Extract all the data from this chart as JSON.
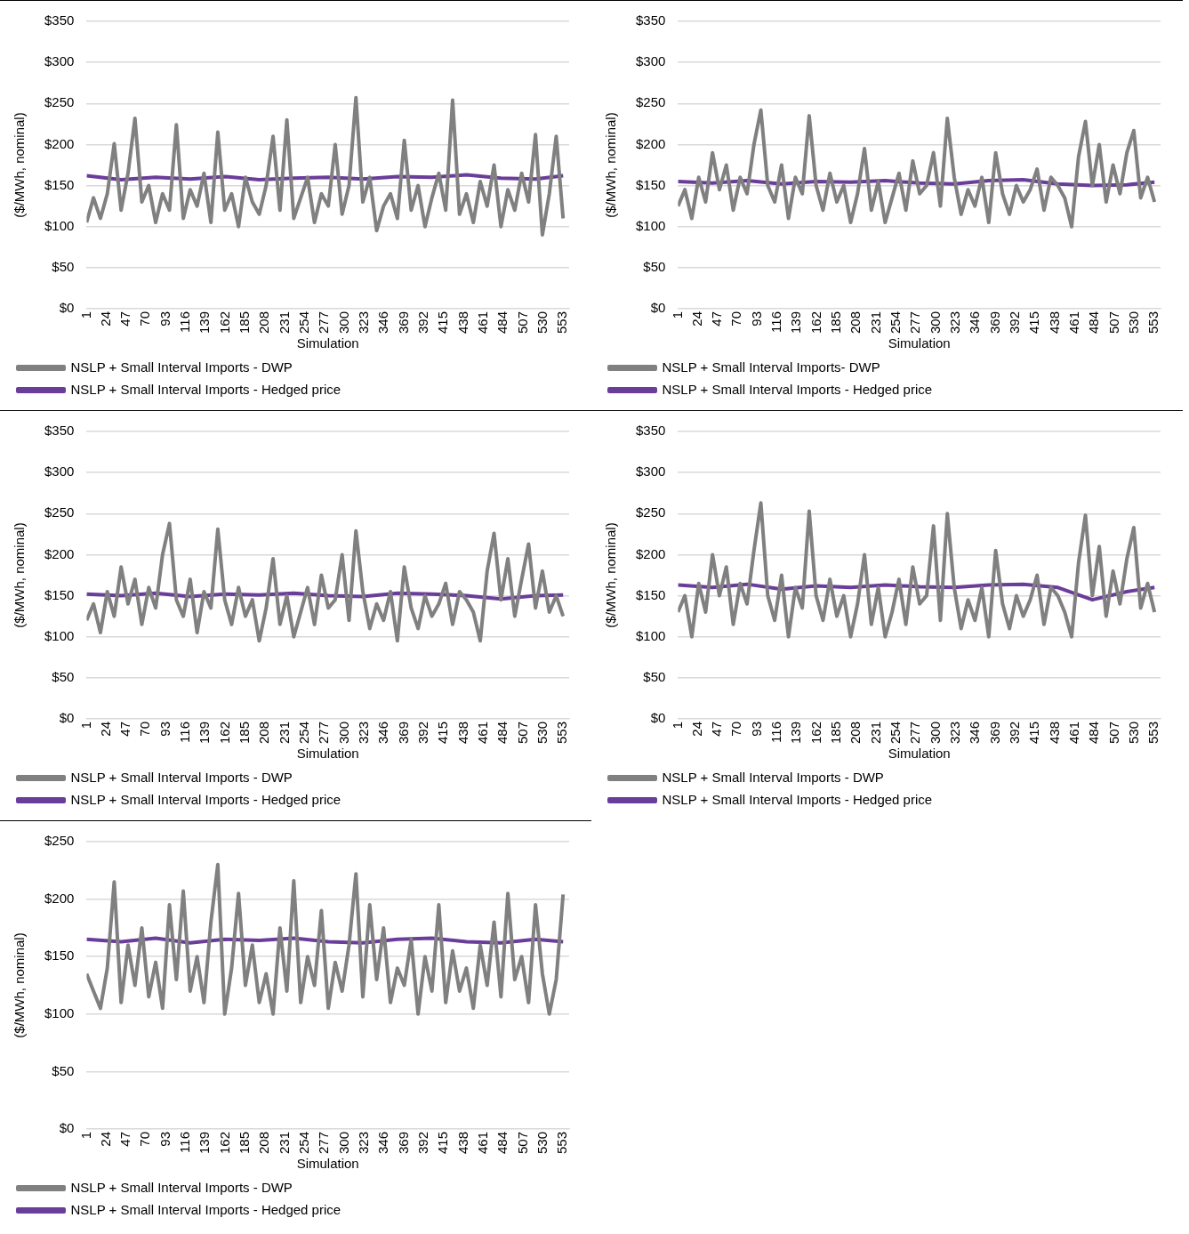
{
  "chart_data": [
    {
      "type": "line",
      "xlabel": "Simulation",
      "ylabel": "($/MWh, nominal)",
      "xlim": [
        1,
        560
      ],
      "xticks": [
        1,
        24,
        47,
        70,
        93,
        116,
        139,
        162,
        185,
        208,
        231,
        254,
        277,
        300,
        323,
        346,
        369,
        392,
        415,
        438,
        461,
        484,
        507,
        530,
        553
      ],
      "ylim": [
        0,
        350
      ],
      "yticks": [
        {
          "value": 0,
          "label": "$0"
        },
        {
          "value": 50,
          "label": "$50"
        },
        {
          "value": 100,
          "label": "$100"
        },
        {
          "value": 150,
          "label": "$150"
        },
        {
          "value": 200,
          "label": "$200"
        },
        {
          "value": 250,
          "label": "$250"
        },
        {
          "value": 300,
          "label": "$300"
        },
        {
          "value": 350,
          "label": "$350"
        }
      ],
      "grid": "y",
      "legend": "bottom",
      "marker": "none",
      "x": [
        1,
        9,
        17,
        25,
        33,
        41,
        49,
        57,
        65,
        73,
        81,
        89,
        97,
        105,
        113,
        121,
        129,
        137,
        145,
        153,
        161,
        169,
        177,
        185,
        193,
        201,
        209,
        217,
        225,
        233,
        241,
        249,
        257,
        265,
        273,
        281,
        289,
        297,
        305,
        313,
        321,
        329,
        337,
        345,
        353,
        361,
        369,
        377,
        385,
        393,
        401,
        409,
        417,
        425,
        433,
        441,
        449,
        457,
        465,
        473,
        481,
        489,
        497,
        505,
        513,
        521,
        529,
        537,
        545,
        553
      ],
      "series": [
        {
          "name": "NSLP + Small Interval Imports - Hedged price",
          "color": "#6a3d9a",
          "x": [
            1,
            41,
            81,
            121,
            161,
            201,
            241,
            281,
            321,
            361,
            401,
            441,
            481,
            521,
            553
          ],
          "values": [
            162,
            157,
            160,
            158,
            161,
            157,
            159,
            160,
            158,
            161,
            160,
            163,
            159,
            158,
            162
          ]
        },
        {
          "name": "NSLP + Small Interval Imports - DWP",
          "color": "#808080",
          "values": [
            105,
            135,
            110,
            140,
            201,
            120,
            165,
            232,
            130,
            150,
            105,
            140,
            120,
            224,
            110,
            145,
            125,
            165,
            105,
            215,
            120,
            140,
            100,
            160,
            130,
            115,
            150,
            210,
            120,
            230,
            110,
            135,
            160,
            105,
            140,
            125,
            200,
            115,
            150,
            257,
            130,
            160,
            95,
            125,
            140,
            110,
            205,
            120,
            150,
            100,
            135,
            165,
            120,
            254,
            115,
            140,
            105,
            155,
            125,
            175,
            100,
            145,
            120,
            165,
            130,
            212,
            90,
            140,
            210,
            110
          ]
        }
      ]
    },
    {
      "type": "line",
      "xlabel": "Simulation",
      "ylabel": "($/MWh, nominal)",
      "xlim": [
        1,
        560
      ],
      "xticks": [
        1,
        24,
        47,
        70,
        93,
        116,
        139,
        162,
        185,
        208,
        231,
        254,
        277,
        300,
        323,
        346,
        369,
        392,
        415,
        438,
        461,
        484,
        507,
        530,
        553
      ],
      "ylim": [
        0,
        350
      ],
      "yticks": [
        {
          "value": 0,
          "label": "$0"
        },
        {
          "value": 50,
          "label": "$50"
        },
        {
          "value": 100,
          "label": "$100"
        },
        {
          "value": 150,
          "label": "$150"
        },
        {
          "value": 200,
          "label": "$200"
        },
        {
          "value": 250,
          "label": "$250"
        },
        {
          "value": 300,
          "label": "$300"
        },
        {
          "value": 350,
          "label": "$350"
        }
      ],
      "grid": "y",
      "legend": "bottom",
      "marker": "none",
      "x": [
        1,
        9,
        17,
        25,
        33,
        41,
        49,
        57,
        65,
        73,
        81,
        89,
        97,
        105,
        113,
        121,
        129,
        137,
        145,
        153,
        161,
        169,
        177,
        185,
        193,
        201,
        209,
        217,
        225,
        233,
        241,
        249,
        257,
        265,
        273,
        281,
        289,
        297,
        305,
        313,
        321,
        329,
        337,
        345,
        353,
        361,
        369,
        377,
        385,
        393,
        401,
        409,
        417,
        425,
        433,
        441,
        449,
        457,
        465,
        473,
        481,
        489,
        497,
        505,
        513,
        521,
        529,
        537,
        545,
        553
      ],
      "series": [
        {
          "name": "NSLP + Small Interval Imports - Hedged price",
          "color": "#6a3d9a",
          "x": [
            1,
            41,
            81,
            121,
            161,
            201,
            241,
            281,
            321,
            361,
            401,
            441,
            481,
            521,
            553
          ],
          "values": [
            155,
            153,
            156,
            152,
            155,
            154,
            156,
            153,
            152,
            156,
            157,
            152,
            150,
            151,
            154
          ]
        },
        {
          "name": "NSLP + Small Interval Imports- DWP",
          "color": "#808080",
          "values": [
            125,
            145,
            110,
            160,
            130,
            190,
            145,
            175,
            120,
            160,
            140,
            200,
            242,
            150,
            130,
            175,
            110,
            160,
            140,
            235,
            150,
            120,
            165,
            130,
            150,
            105,
            140,
            195,
            120,
            155,
            105,
            135,
            165,
            120,
            180,
            140,
            150,
            190,
            125,
            232,
            160,
            115,
            145,
            125,
            160,
            105,
            190,
            140,
            115,
            150,
            130,
            145,
            170,
            120,
            160,
            150,
            135,
            100,
            185,
            228,
            150,
            200,
            130,
            175,
            140,
            190,
            217,
            135,
            160,
            130
          ]
        }
      ]
    },
    {
      "type": "line",
      "xlabel": "Simulation",
      "ylabel": "($/MWh, nominal)",
      "xlim": [
        1,
        560
      ],
      "xticks": [
        1,
        24,
        47,
        70,
        93,
        116,
        139,
        162,
        185,
        208,
        231,
        254,
        277,
        300,
        323,
        346,
        369,
        392,
        415,
        438,
        461,
        484,
        507,
        530,
        553
      ],
      "ylim": [
        0,
        350
      ],
      "yticks": [
        {
          "value": 0,
          "label": "$0"
        },
        {
          "value": 50,
          "label": "$50"
        },
        {
          "value": 100,
          "label": "$100"
        },
        {
          "value": 150,
          "label": "$150"
        },
        {
          "value": 200,
          "label": "$200"
        },
        {
          "value": 250,
          "label": "$250"
        },
        {
          "value": 300,
          "label": "$300"
        },
        {
          "value": 350,
          "label": "$350"
        }
      ],
      "grid": "y",
      "legend": "bottom",
      "marker": "none",
      "x": [
        1,
        9,
        17,
        25,
        33,
        41,
        49,
        57,
        65,
        73,
        81,
        89,
        97,
        105,
        113,
        121,
        129,
        137,
        145,
        153,
        161,
        169,
        177,
        185,
        193,
        201,
        209,
        217,
        225,
        233,
        241,
        249,
        257,
        265,
        273,
        281,
        289,
        297,
        305,
        313,
        321,
        329,
        337,
        345,
        353,
        361,
        369,
        377,
        385,
        393,
        401,
        409,
        417,
        425,
        433,
        441,
        449,
        457,
        465,
        473,
        481,
        489,
        497,
        505,
        513,
        521,
        529,
        537,
        545,
        553
      ],
      "series": [
        {
          "name": "NSLP + Small Interval Imports - Hedged price",
          "color": "#6a3d9a",
          "x": [
            1,
            41,
            81,
            121,
            161,
            201,
            241,
            281,
            321,
            361,
            401,
            441,
            481,
            521,
            553
          ],
          "values": [
            152,
            150,
            153,
            149,
            152,
            151,
            153,
            150,
            149,
            153,
            152,
            150,
            146,
            150,
            151
          ]
        },
        {
          "name": "NSLP + Small Interval Imports - DWP",
          "color": "#808080",
          "values": [
            120,
            140,
            105,
            155,
            125,
            185,
            140,
            170,
            115,
            160,
            135,
            200,
            238,
            145,
            125,
            170,
            105,
            155,
            135,
            231,
            145,
            115,
            160,
            125,
            145,
            95,
            135,
            195,
            115,
            150,
            100,
            130,
            160,
            115,
            175,
            135,
            145,
            200,
            120,
            229,
            155,
            110,
            140,
            120,
            155,
            95,
            185,
            135,
            110,
            150,
            125,
            140,
            165,
            115,
            155,
            145,
            130,
            95,
            180,
            226,
            145,
            195,
            125,
            170,
            213,
            135,
            180,
            130,
            150,
            125
          ]
        }
      ]
    },
    {
      "type": "line",
      "xlabel": "Simulation",
      "ylabel": "($/MWh, nominal)",
      "xlim": [
        1,
        560
      ],
      "xticks": [
        1,
        24,
        47,
        70,
        93,
        116,
        139,
        162,
        185,
        208,
        231,
        254,
        277,
        300,
        323,
        346,
        369,
        392,
        415,
        438,
        461,
        484,
        507,
        530,
        553
      ],
      "ylim": [
        0,
        350
      ],
      "yticks": [
        {
          "value": 0,
          "label": "$0"
        },
        {
          "value": 50,
          "label": "$50"
        },
        {
          "value": 100,
          "label": "$100"
        },
        {
          "value": 150,
          "label": "$150"
        },
        {
          "value": 200,
          "label": "$200"
        },
        {
          "value": 250,
          "label": "$250"
        },
        {
          "value": 300,
          "label": "$300"
        },
        {
          "value": 350,
          "label": "$350"
        }
      ],
      "grid": "y",
      "legend": "bottom",
      "marker": "none",
      "x": [
        1,
        9,
        17,
        25,
        33,
        41,
        49,
        57,
        65,
        73,
        81,
        89,
        97,
        105,
        113,
        121,
        129,
        137,
        145,
        153,
        161,
        169,
        177,
        185,
        193,
        201,
        209,
        217,
        225,
        233,
        241,
        249,
        257,
        265,
        273,
        281,
        289,
        297,
        305,
        313,
        321,
        329,
        337,
        345,
        353,
        361,
        369,
        377,
        385,
        393,
        401,
        409,
        417,
        425,
        433,
        441,
        449,
        457,
        465,
        473,
        481,
        489,
        497,
        505,
        513,
        521,
        529,
        537,
        545,
        553
      ],
      "series": [
        {
          "name": "NSLP + Small Interval Imports - Hedged price",
          "color": "#6a3d9a",
          "x": [
            1,
            41,
            81,
            121,
            161,
            201,
            241,
            281,
            321,
            361,
            401,
            441,
            481,
            521,
            553
          ],
          "values": [
            163,
            160,
            164,
            158,
            162,
            160,
            163,
            161,
            160,
            163,
            164,
            160,
            145,
            155,
            160
          ]
        },
        {
          "name": "NSLP + Small Interval Imports - DWP",
          "color": "#808080",
          "values": [
            130,
            150,
            100,
            165,
            130,
            200,
            150,
            185,
            115,
            165,
            140,
            205,
            263,
            150,
            120,
            175,
            100,
            160,
            135,
            253,
            150,
            120,
            170,
            125,
            150,
            100,
            140,
            200,
            115,
            160,
            100,
            130,
            170,
            115,
            185,
            140,
            150,
            235,
            120,
            250,
            160,
            110,
            145,
            120,
            160,
            100,
            205,
            140,
            110,
            150,
            125,
            145,
            175,
            115,
            160,
            150,
            130,
            100,
            190,
            248,
            150,
            210,
            125,
            180,
            140,
            195,
            233,
            135,
            165,
            130
          ]
        }
      ]
    },
    {
      "type": "line",
      "xlabel": "Simulation",
      "ylabel": "($/MWh, nominal)",
      "xlim": [
        1,
        560
      ],
      "xticks": [
        1,
        24,
        47,
        70,
        93,
        116,
        139,
        162,
        185,
        208,
        231,
        254,
        277,
        300,
        323,
        346,
        369,
        392,
        415,
        438,
        461,
        484,
        507,
        530,
        553
      ],
      "ylim": [
        0,
        250
      ],
      "yticks": [
        {
          "value": 0,
          "label": "$0"
        },
        {
          "value": 50,
          "label": "$50"
        },
        {
          "value": 100,
          "label": "$100"
        },
        {
          "value": 150,
          "label": "$150"
        },
        {
          "value": 200,
          "label": "$200"
        },
        {
          "value": 250,
          "label": "$250"
        }
      ],
      "grid": "y",
      "legend": "bottom",
      "marker": "none",
      "x": [
        1,
        9,
        17,
        25,
        33,
        41,
        49,
        57,
        65,
        73,
        81,
        89,
        97,
        105,
        113,
        121,
        129,
        137,
        145,
        153,
        161,
        169,
        177,
        185,
        193,
        201,
        209,
        217,
        225,
        233,
        241,
        249,
        257,
        265,
        273,
        281,
        289,
        297,
        305,
        313,
        321,
        329,
        337,
        345,
        353,
        361,
        369,
        377,
        385,
        393,
        401,
        409,
        417,
        425,
        433,
        441,
        449,
        457,
        465,
        473,
        481,
        489,
        497,
        505,
        513,
        521,
        529,
        537,
        545,
        553
      ],
      "series": [
        {
          "name": "NSLP + Small Interval Imports - Hedged price",
          "color": "#6a3d9a",
          "x": [
            1,
            41,
            81,
            121,
            161,
            201,
            241,
            281,
            321,
            361,
            401,
            441,
            481,
            521,
            553
          ],
          "values": [
            165,
            163,
            166,
            162,
            165,
            164,
            166,
            163,
            162,
            165,
            166,
            163,
            162,
            165,
            163
          ]
        },
        {
          "name": "NSLP + Small Interval Imports - DWP",
          "color": "#808080",
          "values": [
            135,
            120,
            105,
            140,
            215,
            110,
            160,
            125,
            175,
            115,
            145,
            105,
            195,
            130,
            207,
            120,
            150,
            110,
            180,
            230,
            100,
            140,
            205,
            125,
            160,
            110,
            135,
            100,
            175,
            120,
            216,
            110,
            150,
            125,
            190,
            105,
            145,
            120,
            160,
            222,
            115,
            195,
            130,
            175,
            110,
            140,
            125,
            165,
            100,
            150,
            120,
            195,
            110,
            155,
            120,
            140,
            105,
            160,
            125,
            180,
            115,
            205,
            130,
            150,
            110,
            195,
            135,
            100,
            130,
            204
          ]
        }
      ]
    }
  ]
}
